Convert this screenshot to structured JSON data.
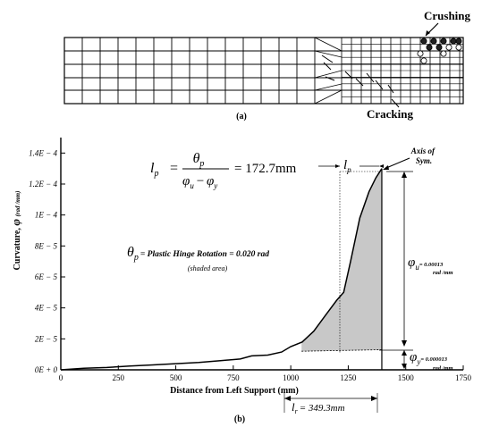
{
  "panel_a": {
    "label": "(a)",
    "crushing_label": "Crushing",
    "cracking_label": "Cracking"
  },
  "panel_b": {
    "label": "(b)",
    "lp_formula": {
      "lhs": "l",
      "lhs_sub": "p",
      "num": "θ",
      "num_sub": "p",
      "den_a": "φ",
      "den_a_sub": "u",
      "den_minus": "−",
      "den_b": "φ",
      "den_b_sub": "y",
      "result": "= 172.7mm"
    },
    "lp_marker": {
      "sym": "l",
      "sub": "p"
    },
    "axis_of_sym": [
      "Axis of",
      "Sym."
    ],
    "theta_annotation": {
      "sym": "θ",
      "sub": "p",
      "text": "= Plastic Hinge Rotation = 0.020 rad",
      "note": "(shaded area)"
    },
    "phi_u": {
      "sym": "φ",
      "sub": "u",
      "value": "= 0.00013",
      "unit": "rad /mm"
    },
    "phi_y": {
      "sym": "φ",
      "sub": "y",
      "value": "= 0.000013",
      "unit": "rad /mm"
    },
    "lr": {
      "sym": "l",
      "sub": "r",
      "text": "= 349.3mm"
    }
  },
  "chart_data": {
    "type": "line",
    "xlabel": "Distance from Left Support (mm)",
    "ylabel": "Curvature,",
    "ylabel_sym": "φ",
    "ylabel_unit": "(rad /mm)",
    "xlim": [
      0,
      1750
    ],
    "ylim": [
      0,
      0.00015
    ],
    "x_ticks": [
      0,
      250,
      500,
      750,
      1000,
      1250,
      1500,
      1750
    ],
    "x_tick_labels": [
      "0",
      "250",
      "500",
      "750",
      "1000",
      "1250",
      "1500",
      "1750"
    ],
    "y_ticks": [
      0,
      2e-05,
      4e-05,
      6e-05,
      8e-05,
      0.0001,
      0.00012,
      0.00014
    ],
    "y_tick_labels": [
      "0E + 0",
      "2E − 5",
      "4E − 5",
      "6E − 5",
      "8E − 5",
      "1E − 4",
      "1.2E − 4",
      "1.4E − 4"
    ],
    "series": [
      {
        "x": [
          0,
          100,
          200,
          300,
          400,
          500,
          600,
          700,
          780,
          830,
          900,
          960,
          1000,
          1050,
          1100,
          1150,
          1200,
          1230,
          1260,
          1300,
          1340,
          1370,
          1396
        ],
        "y": [
          0,
          1e-06,
          1.5e-06,
          2.5e-06,
          3.2e-06,
          4e-06,
          4.8e-06,
          6e-06,
          7e-06,
          9e-06,
          9.5e-06,
          1.15e-05,
          1.5e-05,
          1.8e-05,
          2.5e-05,
          3.5e-05,
          4.5e-05,
          5e-05,
          7e-05,
          9.8e-05,
          0.000115,
          0.000124,
          0.00013
        ]
      }
    ],
    "shaded_region": {
      "x_from": 1047,
      "x_to": 1396,
      "baseline_y_from": 1.2e-05,
      "baseline_y_to": 1.3e-05
    },
    "dimension_lines": {
      "lp_mm": 172.7,
      "lr_mm": 349.3
    }
  }
}
